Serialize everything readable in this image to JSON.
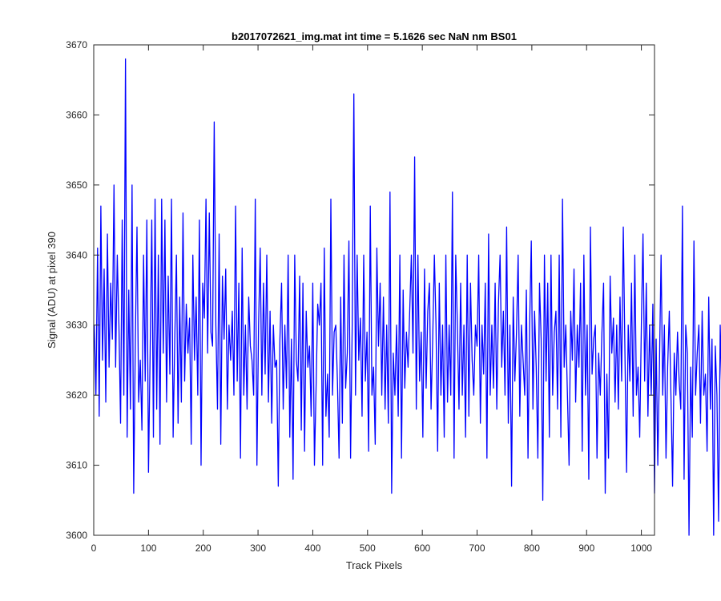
{
  "chart_data": {
    "type": "line",
    "title": "b2017072621_img.mat int time = 5.1626 sec  NaN nm BS01",
    "xlabel": "Track Pixels",
    "ylabel": "Signal (ADU) at pixel 390",
    "xlim": [
      0,
      1024
    ],
    "ylim": [
      3600,
      3670
    ],
    "xticks": [
      0,
      100,
      200,
      300,
      400,
      500,
      600,
      700,
      800,
      900,
      1000
    ],
    "yticks": [
      3600,
      3610,
      3620,
      3630,
      3640,
      3650,
      3660,
      3670
    ],
    "grid": false,
    "legend": "none",
    "line_color": "#0000ff",
    "axis_color": "#262626",
    "series": [
      {
        "x_start": 1,
        "x_step": 3,
        "values": [
          3630,
          3620,
          3641,
          3617,
          3647,
          3625,
          3638,
          3619,
          3643,
          3624,
          3636,
          3628,
          3650,
          3624,
          3640,
          3630,
          3616,
          3645,
          3620,
          3668,
          3614,
          3635,
          3618,
          3650,
          3606,
          3628,
          3644,
          3619,
          3625,
          3615,
          3640,
          3622,
          3645,
          3609,
          3626,
          3645,
          3614,
          3648,
          3618,
          3640,
          3613,
          3648,
          3626,
          3645,
          3619,
          3637,
          3623,
          3648,
          3614,
          3628,
          3640,
          3616,
          3634,
          3619,
          3646,
          3622,
          3633,
          3626,
          3631,
          3613,
          3640,
          3625,
          3634,
          3620,
          3645,
          3610,
          3636,
          3631,
          3648,
          3626,
          3646,
          3629,
          3627,
          3659,
          3630,
          3618,
          3643,
          3613,
          3637,
          3628,
          3638,
          3618,
          3630,
          3625,
          3632,
          3620,
          3647,
          3622,
          3636,
          3611,
          3641,
          3620,
          3630,
          3618,
          3634,
          3627,
          3625,
          3620,
          3648,
          3610,
          3630,
          3641,
          3620,
          3636,
          3623,
          3640,
          3619,
          3632,
          3616,
          3630,
          3624,
          3625,
          3607,
          3628,
          3636,
          3618,
          3630,
          3621,
          3640,
          3614,
          3628,
          3608,
          3640,
          3625,
          3622,
          3637,
          3615,
          3636,
          3612,
          3632,
          3624,
          3627,
          3617,
          3636,
          3610,
          3621,
          3633,
          3630,
          3636,
          3610,
          3641,
          3617,
          3623,
          3614,
          3648,
          3620,
          3629,
          3630,
          3622,
          3611,
          3634,
          3616,
          3640,
          3621,
          3626,
          3642,
          3611,
          3630,
          3663,
          3620,
          3640,
          3625,
          3631,
          3617,
          3640,
          3622,
          3629,
          3612,
          3647,
          3620,
          3624,
          3613,
          3641,
          3627,
          3636,
          3620,
          3634,
          3618,
          3630,
          3616,
          3649,
          3606,
          3626,
          3620,
          3630,
          3617,
          3640,
          3611,
          3635,
          3621,
          3629,
          3624,
          3632,
          3640,
          3626,
          3654,
          3618,
          3640,
          3622,
          3629,
          3614,
          3638,
          3621,
          3632,
          3636,
          3618,
          3628,
          3640,
          3630,
          3612,
          3636,
          3620,
          3630,
          3614,
          3640,
          3619,
          3630,
          3620,
          3649,
          3611,
          3640,
          3630,
          3618,
          3636,
          3620,
          3630,
          3614,
          3640,
          3617,
          3636,
          3625,
          3620,
          3630,
          3627,
          3640,
          3616,
          3630,
          3623,
          3636,
          3611,
          3643,
          3620,
          3630,
          3621,
          3636,
          3618,
          3633,
          3640,
          3624,
          3632,
          3620,
          3644,
          3616,
          3630,
          3607,
          3634,
          3622,
          3629,
          3640,
          3617,
          3630,
          3625,
          3620,
          3635,
          3611,
          3630,
          3642,
          3618,
          3632,
          3624,
          3611,
          3636,
          3628,
          3605,
          3640,
          3622,
          3636,
          3614,
          3640,
          3620,
          3629,
          3632,
          3618,
          3640,
          3614,
          3648,
          3624,
          3630,
          3620,
          3610,
          3632,
          3625,
          3638,
          3619,
          3630,
          3624,
          3636,
          3612,
          3640,
          3620,
          3630,
          3608,
          3644,
          3623,
          3628,
          3630,
          3611,
          3626,
          3620,
          3629,
          3636,
          3606,
          3623,
          3611,
          3637,
          3626,
          3631,
          3619,
          3630,
          3618,
          3634,
          3622,
          3644,
          3626,
          3609,
          3630,
          3622,
          3636,
          3617,
          3640,
          3620,
          3624,
          3614,
          3630,
          3643,
          3622,
          3636,
          3617,
          3630,
          3620,
          3633,
          3606,
          3628,
          3610,
          3624,
          3640,
          3620,
          3630,
          3611,
          3624,
          3632,
          3620,
          3607,
          3626,
          3620,
          3629,
          3622,
          3618,
          3647,
          3608,
          3630,
          3626,
          3600,
          3624,
          3614,
          3642,
          3620,
          3626,
          3630,
          3616,
          3632,
          3620,
          3623,
          3612,
          3634,
          3618,
          3628,
          3600,
          3627,
          3620,
          3602,
          3630,
          3620,
          3628,
          3612,
          3633,
          3620,
          3624,
          3611,
          3638,
          3621,
          3632
        ]
      }
    ]
  }
}
